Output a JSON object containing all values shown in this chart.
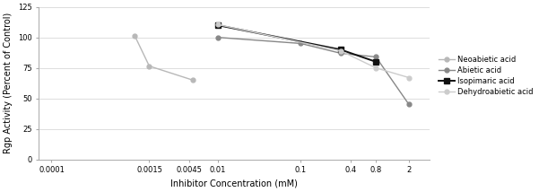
{
  "series": [
    {
      "label": "Neoabietic acid",
      "x": [
        0.001,
        0.0015,
        0.005
      ],
      "y": [
        101.5,
        76.5,
        65.0
      ],
      "color": "#b8b8b8",
      "marker": "o",
      "markersize": 3.5,
      "linewidth": 1.0,
      "linestyle": "-"
    },
    {
      "label": "Abietic acid",
      "x": [
        0.01,
        0.1,
        0.3,
        0.8,
        2.0
      ],
      "y": [
        100.0,
        95.0,
        87.0,
        84.0,
        45.0
      ],
      "color": "#888888",
      "marker": "o",
      "markersize": 3.5,
      "linewidth": 1.0,
      "linestyle": "-"
    },
    {
      "label": "Isopimaric acid",
      "x": [
        0.01,
        0.3,
        0.8
      ],
      "y": [
        110.0,
        90.0,
        80.0
      ],
      "color": "#111111",
      "marker": "s",
      "markersize": 4,
      "linewidth": 1.4,
      "linestyle": "-"
    },
    {
      "label": "Dehydroabietic acid",
      "x": [
        0.01,
        0.3,
        0.8,
        2.0
      ],
      "y": [
        110.5,
        89.0,
        75.0,
        67.0
      ],
      "color": "#cccccc",
      "marker": "o",
      "markersize": 3.5,
      "linewidth": 1.0,
      "linestyle": "-"
    }
  ],
  "xlabel": "Inhibitor Concentration (mM)",
  "ylabel": "Rgp Activity (Percent of Control)",
  "ylim": [
    0,
    125
  ],
  "yticks": [
    0,
    25,
    50,
    75,
    100,
    125
  ],
  "xtick_positions": [
    0.0001,
    0.0015,
    0.0045,
    0.01,
    0.1,
    0.4,
    0.8,
    2
  ],
  "xticklabels": [
    "0.0001",
    "0.0015",
    "0.0045",
    "0.01",
    "0.1",
    "0.4",
    "0.8",
    "2"
  ],
  "background_color": "#ffffff",
  "grid_color": "#d8d8d8",
  "legend_fontsize": 6.0,
  "axis_label_fontsize": 7,
  "tick_fontsize": 6,
  "spine_color": "#aaaaaa"
}
